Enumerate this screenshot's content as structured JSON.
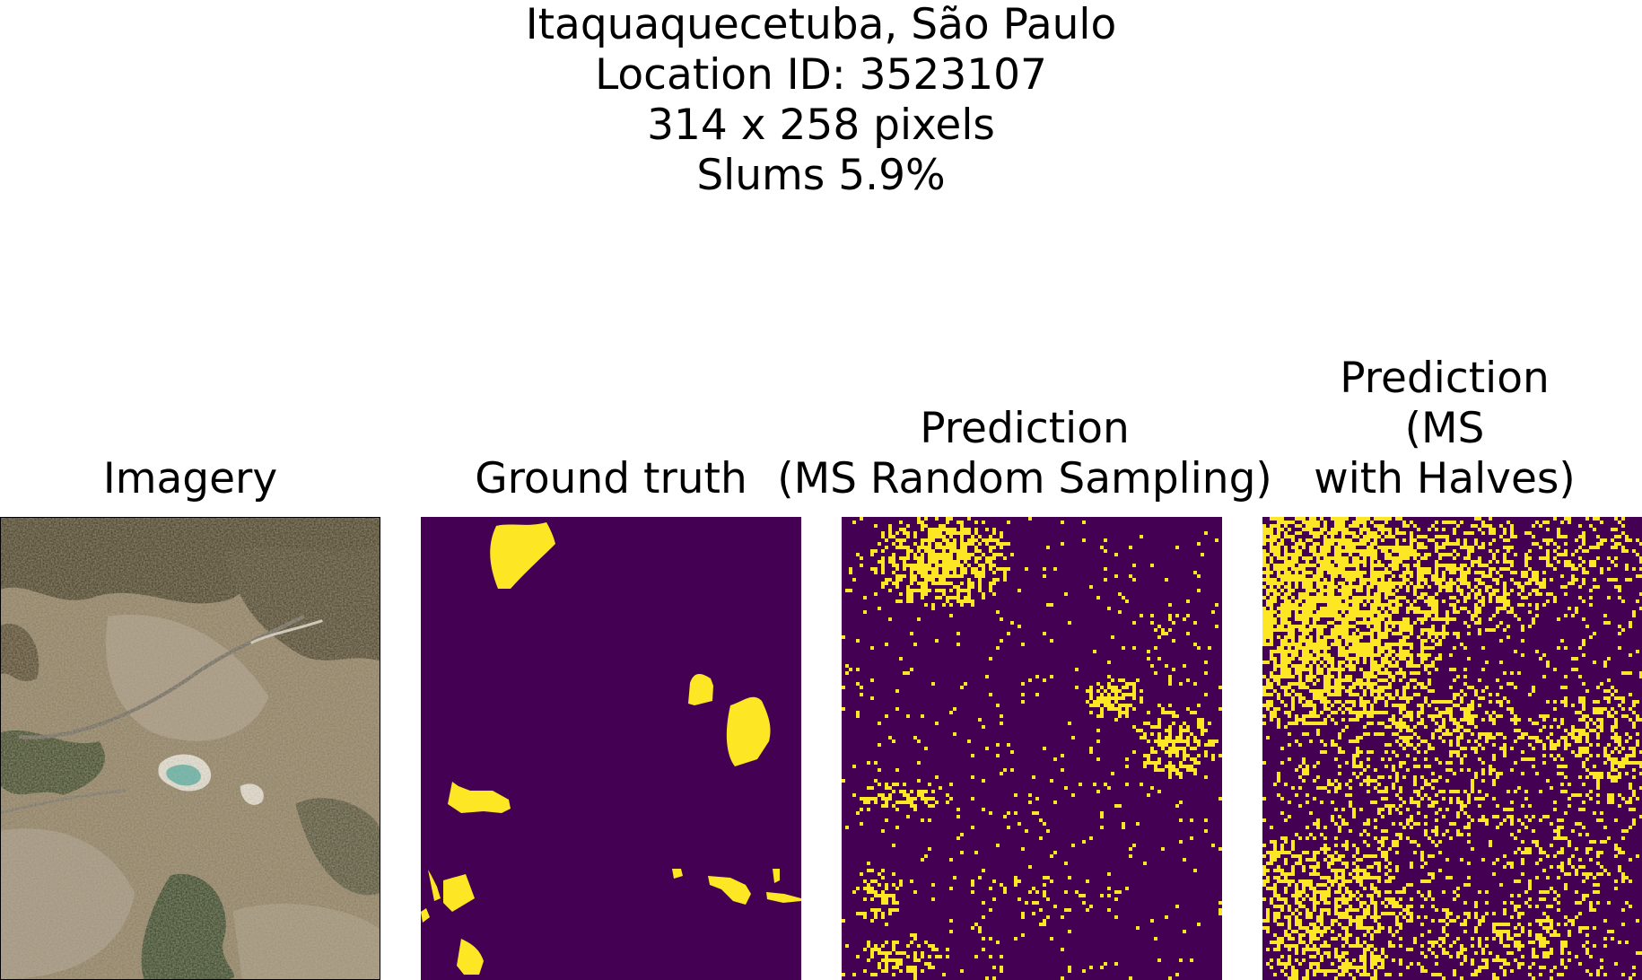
{
  "figure": {
    "suptitle_lines": [
      "Itaquaquecetuba, São Paulo",
      "Location ID: 3523107",
      "314 x 258 pixels",
      "Slums 5.9%"
    ]
  },
  "panels": [
    {
      "title_lines": [
        "Imagery"
      ],
      "kind": "satellite"
    },
    {
      "title_lines": [
        "Ground truth"
      ],
      "kind": "mask"
    },
    {
      "title_lines": [
        "Prediction",
        "(MS Random Sampling)"
      ],
      "kind": "mask"
    },
    {
      "title_lines": [
        "Prediction",
        "(MS",
        "with Halves)"
      ],
      "kind": "mask"
    }
  ],
  "colors": {
    "mask_background": "#440154",
    "mask_foreground": "#fde725",
    "imagery_base": "#8b7a5c"
  }
}
